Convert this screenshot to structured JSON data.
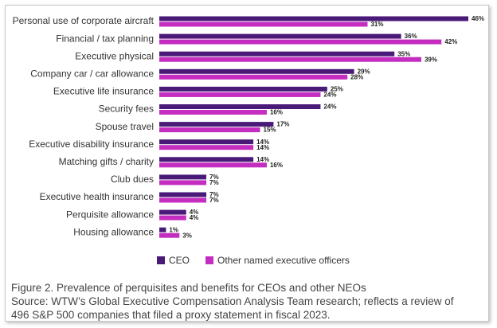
{
  "chart_data": {
    "type": "bar",
    "orientation": "horizontal",
    "categories": [
      "Personal use of corporate aircraft",
      "Financial / tax planning",
      "Executive physical",
      "Company car / car allowance",
      "Executive life insurance",
      "Security fees",
      "Spouse travel",
      "Executive disability insurance",
      "Matching gifts / charity",
      "Club dues",
      "Executive health insurance",
      "Perquisite allowance",
      "Housing allowance"
    ],
    "series": [
      {
        "name": "CEO",
        "color": "#4a1a78",
        "values": [
          46,
          36,
          35,
          29,
          25,
          24,
          17,
          14,
          14,
          7,
          7,
          4,
          1
        ],
        "value_labels": [
          "46%",
          "36%",
          "35%",
          "29%",
          "25%",
          "24%",
          "17%",
          "14%",
          "14%",
          "7%",
          "7%",
          "4%",
          "1%"
        ]
      },
      {
        "name": "Other named executive officers",
        "color": "#c42dc0",
        "values": [
          31,
          42,
          39,
          28,
          24,
          16,
          15,
          14,
          16,
          7,
          7,
          4,
          3
        ],
        "value_labels": [
          "31%",
          "42%",
          "39%",
          "28%",
          "24%",
          "16%",
          "15%",
          "14%",
          "16%",
          "7%",
          "7%",
          "4%",
          "3%"
        ]
      }
    ],
    "legend": "bottom",
    "caption": [
      "Figure 2. Prevalence of perquisites and benefits for CEOs and other NEOs",
      "Source: WTW’s Global Executive Compensation Analysis Team research; reflects a review of",
      "496 S&P 500 companies that filed a proxy statement in fiscal 2023."
    ]
  }
}
